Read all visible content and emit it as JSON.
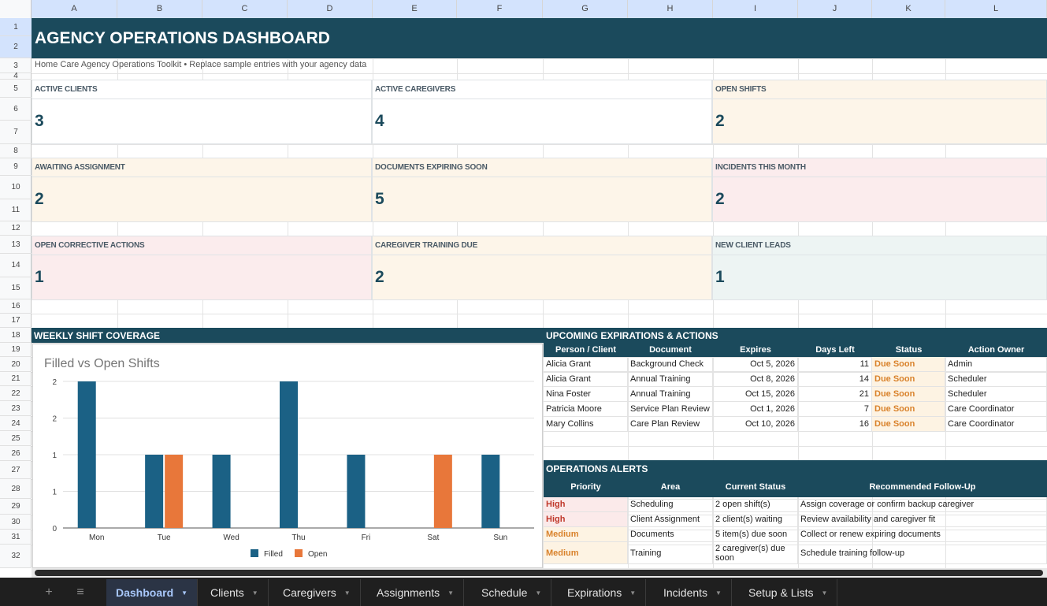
{
  "columns": [
    "A",
    "B",
    "C",
    "D",
    "E",
    "F",
    "G",
    "H",
    "I",
    "J",
    "K",
    "L"
  ],
  "rows": [
    "1",
    "2",
    "3",
    "4",
    "5",
    "6",
    "7",
    "8",
    "9",
    "10",
    "11",
    "12",
    "13",
    "14",
    "15",
    "16",
    "17",
    "18",
    "19",
    "20",
    "21",
    "22",
    "23",
    "24",
    "25",
    "26",
    "27",
    "28",
    "29",
    "30",
    "31",
    "32"
  ],
  "dashboard": {
    "title": "AGENCY OPERATIONS DASHBOARD",
    "subtitle": "Home Care Agency Operations Toolkit  •  Replace sample entries with your agency data"
  },
  "kpis": [
    {
      "label": "ACTIVE CLIENTS",
      "value": "3",
      "bg": "#ffffff"
    },
    {
      "label": "ACTIVE CAREGIVERS",
      "value": "4",
      "bg": "#ffffff"
    },
    {
      "label": "OPEN SHIFTS",
      "value": "2",
      "bg": "#fdf5e9"
    },
    {
      "label": "AWAITING ASSIGNMENT",
      "value": "2",
      "bg": "#fdf5e9"
    },
    {
      "label": "DOCUMENTS EXPIRING SOON",
      "value": "5",
      "bg": "#fdf5e9"
    },
    {
      "label": "INCIDENTS THIS MONTH",
      "value": "2",
      "bg": "#fbeced"
    },
    {
      "label": "OPEN CORRECTIVE ACTIONS",
      "value": "1",
      "bg": "#fbeced"
    },
    {
      "label": "CAREGIVER TRAINING DUE",
      "value": "2",
      "bg": "#fdf5e9"
    },
    {
      "label": "NEW CLIENT LEADS",
      "value": "1",
      "bg": "#edf4f3"
    }
  ],
  "coverage": {
    "section_title": "WEEKLY SHIFT COVERAGE"
  },
  "chart_data": {
    "type": "bar",
    "title": "Filled vs Open Shifts",
    "categories": [
      "Mon",
      "Tue",
      "Wed",
      "Thu",
      "Fri",
      "Sat",
      "Sun"
    ],
    "series": [
      {
        "name": "Filled",
        "values": [
          2,
          1,
          1,
          2,
          1,
          0,
          1
        ],
        "color": "#1b6185"
      },
      {
        "name": "Open",
        "values": [
          0,
          1,
          0,
          0,
          0,
          1,
          0
        ],
        "color": "#e8773a"
      }
    ],
    "yticks": [
      "2",
      "2",
      "1",
      "1",
      "0"
    ],
    "ylim": [
      0,
      2
    ],
    "legend": "bottom",
    "grid": true
  },
  "expirations": {
    "section_title": "UPCOMING EXPIRATIONS & ACTIONS",
    "headers": [
      "Person / Client",
      "Document",
      "Expires",
      "Days Left",
      "Status",
      "Action Owner"
    ],
    "rows": [
      [
        "Alicia Grant",
        "Background Check",
        "Oct 5, 2026",
        "11",
        "Due Soon",
        "Admin"
      ],
      [
        "Alicia Grant",
        "Annual Training",
        "Oct 8, 2026",
        "14",
        "Due Soon",
        "Scheduler"
      ],
      [
        "Nina Foster",
        "Annual Training",
        "Oct 15, 2026",
        "21",
        "Due Soon",
        "Scheduler"
      ],
      [
        "Patricia Moore",
        "Service Plan Review",
        "Oct 1, 2026",
        "7",
        "Due Soon",
        "Care Coordinator"
      ],
      [
        "Mary Collins",
        "Care Plan Review",
        "Oct 10, 2026",
        "16",
        "Due Soon",
        "Care Coordinator"
      ]
    ]
  },
  "alerts": {
    "section_title": "OPERATIONS ALERTS",
    "headers": [
      "Priority",
      "Area",
      "Current Status",
      "Recommended Follow-Up"
    ],
    "rows": [
      [
        "High",
        "Scheduling",
        "2 open shift(s)",
        "Assign coverage or confirm backup caregiver"
      ],
      [
        "High",
        "Client Assignment",
        "2 client(s) waiting",
        "Review availability and caregiver fit"
      ],
      [
        "Medium",
        "Documents",
        "5 item(s) due soon",
        "Collect or renew expiring documents"
      ],
      [
        "Medium",
        "Training",
        "2 caregiver(s) due soon",
        "Schedule training follow-up"
      ]
    ]
  },
  "sheet_tabs": [
    "Dashboard",
    "Clients",
    "Caregivers",
    "Assignments",
    "Schedule",
    "Expirations",
    "Incidents",
    "Setup & Lists"
  ],
  "active_tab": "Dashboard",
  "icons": {
    "add_sheet": "plus-icon",
    "all_sheets": "menu-icon"
  }
}
